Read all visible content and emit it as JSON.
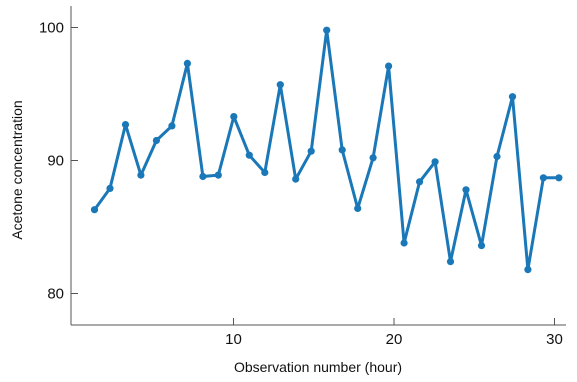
{
  "chart_data": {
    "type": "line",
    "title": "",
    "xlabel": "Observation number (hour)",
    "ylabel": "Acetone concentration",
    "xlim": [
      0,
      32
    ],
    "ylim": [
      77.5,
      102
    ],
    "xticks": [
      10,
      20,
      30
    ],
    "yticks": [
      80,
      90,
      100
    ],
    "grid": false,
    "series": [
      {
        "color": "#1a78b8",
        "x": [
          1,
          2,
          3,
          4,
          5,
          6,
          7,
          8,
          9,
          10,
          11,
          12,
          13,
          14,
          15,
          16,
          17,
          18,
          19,
          20,
          21,
          22,
          23,
          24,
          25,
          26,
          27,
          28,
          29,
          30,
          31
        ],
        "y": [
          86.3,
          87.9,
          92.7,
          88.9,
          91.5,
          92.6,
          97.3,
          88.8,
          88.9,
          93.3,
          90.4,
          89.1,
          95.7,
          88.6,
          90.7,
          99.8,
          90.8,
          86.4,
          90.2,
          97.1,
          83.8,
          88.4,
          89.9,
          82.4,
          87.8,
          83.6,
          90.3,
          94.8,
          81.8,
          88.7,
          88.7
        ]
      }
    ]
  }
}
